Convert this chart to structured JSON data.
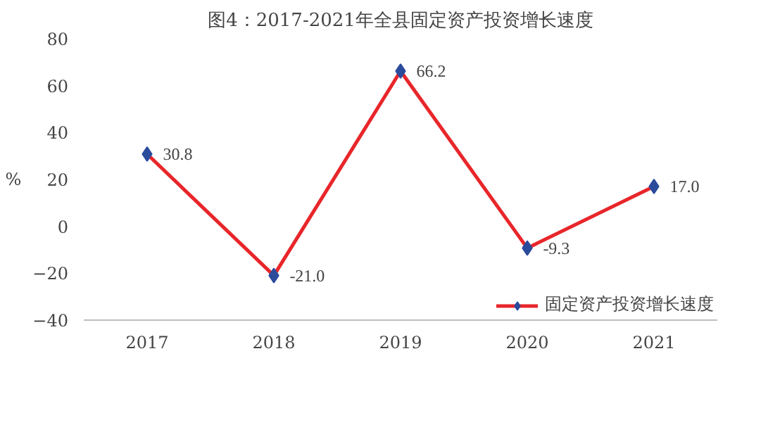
{
  "chart_data": {
    "type": "line",
    "title": "图4：2017-2021年全县固定资产投资增长速度",
    "ylabel": "%",
    "categories": [
      "2017",
      "2018",
      "2019",
      "2020",
      "2021"
    ],
    "series": [
      {
        "name": "固定资产投资增长速度",
        "color": "#e8262a",
        "colors": [
          "#2b4b9b",
          "#2b4b9b",
          "#2b4b9b",
          "#2b4b9b",
          "#2b4b9b"
        ],
        "values": [
          30.8,
          -21.0,
          66.2,
          -9.3,
          17.0
        ],
        "value_labels": [
          "30.8",
          "-21.0",
          "66.2",
          "-9.3",
          "17.0"
        ]
      }
    ],
    "ylim": [
      -40,
      80
    ],
    "yticks": [
      -40,
      -20,
      0,
      20,
      40,
      60,
      80
    ],
    "marker": "diamond",
    "legend": "bottom",
    "grid": false
  }
}
